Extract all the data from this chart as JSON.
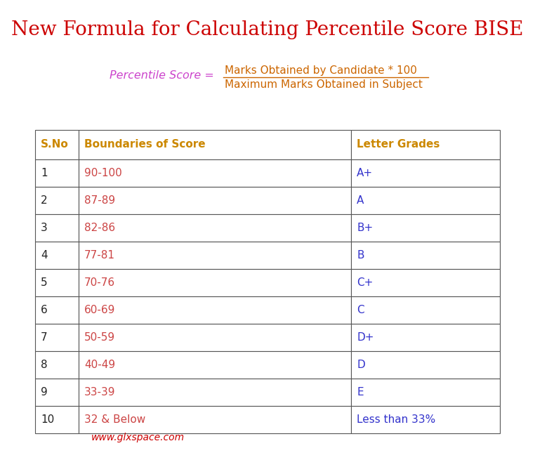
{
  "title": "New Formula for Calculating Percentile Score BISE",
  "title_color": "#cc0000",
  "title_fontsize": 20,
  "formula_label": "Percentile Score =",
  "formula_label_color": "#cc44cc",
  "formula_numerator": "Marks Obtained by Candidate * 100",
  "formula_denominator": "Maximum Marks Obtained in Subject",
  "formula_color": "#cc6600",
  "table_header": [
    "S.No",
    "Boundaries of Score",
    "Letter Grades"
  ],
  "header_color": "#cc8800",
  "table_data": [
    [
      "1",
      "90-100",
      "A+"
    ],
    [
      "2",
      "87-89",
      "A"
    ],
    [
      "3",
      "82-86",
      "B+"
    ],
    [
      "4",
      "77-81",
      "B"
    ],
    [
      "5",
      "70-76",
      "C+"
    ],
    [
      "6",
      "60-69",
      "C"
    ],
    [
      "7",
      "50-59",
      "D+"
    ],
    [
      "8",
      "40-49",
      "D"
    ],
    [
      "9",
      "33-39",
      "E"
    ],
    [
      "10",
      "32 & Below",
      "Less than 33%"
    ]
  ],
  "score_color": "#cc4444",
  "grade_color": "#3333cc",
  "sno_color": "#222222",
  "website": "www.glxspace.com",
  "website_color": "#cc0000",
  "bg_color": "#ffffff",
  "border_color": "#555555",
  "fig_width": 7.62,
  "fig_height": 6.45,
  "dpi": 100
}
